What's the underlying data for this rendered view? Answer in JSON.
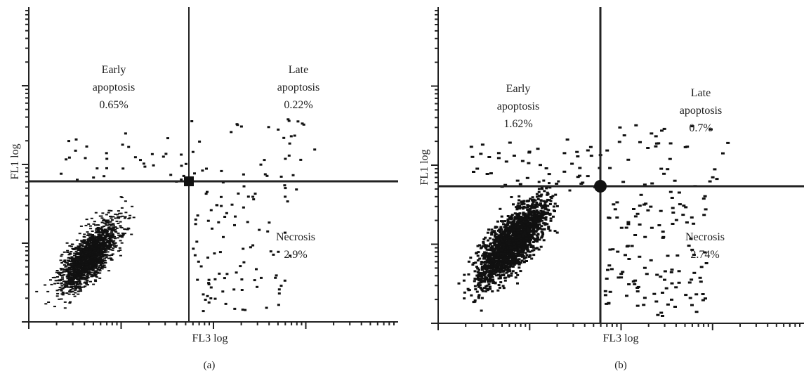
{
  "chart_data": [
    {
      "type": "scatter",
      "panel_label": "(a)",
      "xlabel": "FL3 log",
      "ylabel": "FL1 log",
      "scale": "log",
      "quadrants": {
        "upper_left": {
          "lines": [
            "Early",
            "apoptosis"
          ],
          "value": "0.65%"
        },
        "upper_right": {
          "lines": [
            "Late",
            "apoptosis"
          ],
          "value": "0.22%"
        },
        "lower_right": {
          "lines": [
            "Necrosis"
          ],
          "value": "2.9%"
        }
      },
      "population": {
        "center_fraction": [
          0.16,
          0.21
        ],
        "spread": "tight diagonal cluster, lower-left quadrant"
      }
    },
    {
      "type": "scatter",
      "panel_label": "(b)",
      "xlabel": "FL3 log",
      "ylabel": "FL1 log",
      "scale": "log",
      "quadrants": {
        "upper_left": {
          "lines": [
            "Early",
            "apoptosis"
          ],
          "value": "1.62%"
        },
        "upper_right": {
          "lines": [
            "Late",
            "apoptosis"
          ],
          "value": "0.7%"
        },
        "lower_right": {
          "lines": [
            "Necrosis"
          ],
          "value": "2.74%"
        }
      },
      "population": {
        "center_fraction": [
          0.2,
          0.26
        ],
        "spread": "broader diagonal cluster, lower-left quadrant"
      }
    }
  ],
  "colors": {
    "dots": "#111111",
    "axis": "#222222",
    "text": "#222222",
    "background": "#ffffff"
  }
}
